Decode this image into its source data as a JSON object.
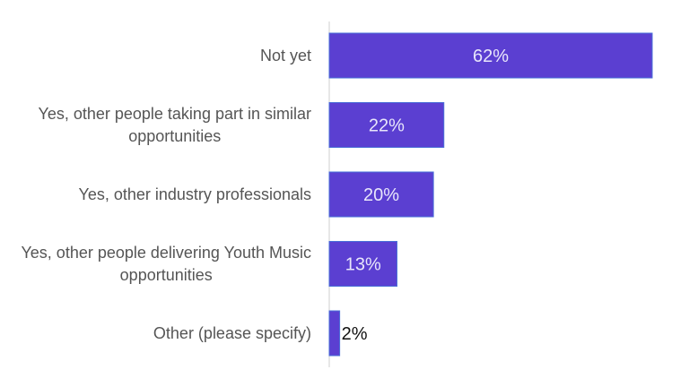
{
  "chart_data": {
    "type": "bar",
    "orientation": "horizontal",
    "categories": [
      [
        "Not yet"
      ],
      [
        "Yes, other people taking part in similar",
        "opportunities"
      ],
      [
        "Yes, other industry professionals"
      ],
      [
        "Yes, other people delivering Youth Music",
        "opportunities"
      ],
      [
        "Other (please specify)"
      ]
    ],
    "values": [
      62,
      22,
      20,
      13,
      2
    ],
    "value_labels": [
      "62%",
      "22%",
      "20%",
      "13%",
      "2%"
    ],
    "xlim": [
      0,
      70
    ],
    "grid": false,
    "title": "",
    "xlabel": "",
    "ylabel": ""
  },
  "colors": {
    "bar_fill": "#5b3fd1",
    "bar_stroke": "#4a6fd8",
    "axis": "#cfcfcf",
    "category_text": "#555555",
    "label_inside": "#e8e6fb",
    "label_outside": "#111111"
  }
}
